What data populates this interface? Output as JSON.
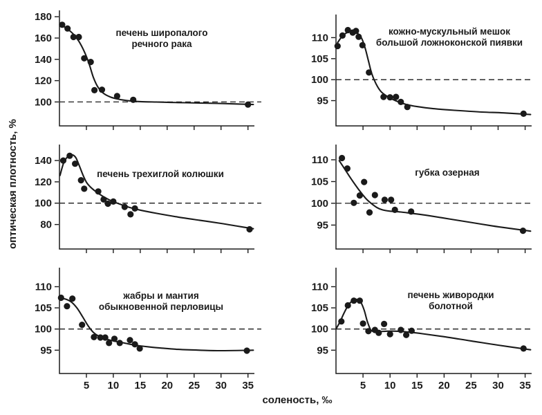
{
  "figure": {
    "ylabel": "оптическая плотность, %",
    "xlabel": "соленость, ‰",
    "ink_color": "#1a1a1a",
    "background": "#ffffff"
  },
  "chart_data": [
    {
      "type": "scatter",
      "title_lines": [
        "печень широпалого",
        "речного рака"
      ],
      "xlim": [
        0,
        36.2
      ],
      "xticks": [
        5,
        10,
        15,
        20,
        25,
        30,
        35
      ],
      "xtick_labels_visible": false,
      "ylim": [
        77.5,
        186
      ],
      "yticks": [
        100,
        120,
        140,
        160,
        180
      ],
      "ref_line_y": 100,
      "points": [
        [
          0.5,
          172.5
        ],
        [
          1.5,
          169
        ],
        [
          2.6,
          161
        ],
        [
          3.6,
          161
        ],
        [
          4.6,
          141
        ],
        [
          5.8,
          137.5
        ],
        [
          6.5,
          111
        ],
        [
          7.9,
          111.5
        ],
        [
          10.7,
          105.5
        ],
        [
          13.7,
          102
        ],
        [
          35,
          97.5
        ]
      ],
      "curve": [
        [
          0.4,
          172
        ],
        [
          1.5,
          168.5
        ],
        [
          2.6,
          163.5
        ],
        [
          3.6,
          157
        ],
        [
          4.6,
          147.5
        ],
        [
          5.5,
          136
        ],
        [
          6.3,
          123
        ],
        [
          7.2,
          113.5
        ],
        [
          8.2,
          108
        ],
        [
          9.5,
          104.5
        ],
        [
          11,
          102.5
        ],
        [
          13,
          101
        ],
        [
          15,
          100.3
        ],
        [
          18,
          99.9
        ],
        [
          22,
          99.4
        ],
        [
          26,
          99
        ],
        [
          31,
          98.4
        ],
        [
          36,
          97.6
        ]
      ]
    },
    {
      "type": "scatter",
      "title_lines": [
        "кожно-мускульный мешок",
        "большой ложноконской пиявки"
      ],
      "xlim": [
        0,
        36.2
      ],
      "xticks": [
        5,
        10,
        15,
        20,
        25,
        30,
        35
      ],
      "xtick_labels_visible": false,
      "ylim": [
        89,
        115.5
      ],
      "yticks": [
        95,
        100,
        105,
        110
      ],
      "ref_line_y": 100,
      "points": [
        [
          0.3,
          108
        ],
        [
          1.2,
          110.5
        ],
        [
          2.2,
          111.8
        ],
        [
          3.1,
          111.2
        ],
        [
          3.7,
          111.6
        ],
        [
          4.2,
          110.2
        ],
        [
          4.9,
          108.2
        ],
        [
          6.1,
          101.7
        ],
        [
          8.8,
          95.9
        ],
        [
          10,
          95.8
        ],
        [
          11.1,
          95.9
        ],
        [
          12,
          94.7
        ],
        [
          13.2,
          93.5
        ],
        [
          34.7,
          91.9
        ]
      ],
      "curve": [
        [
          0.3,
          108.8
        ],
        [
          1.2,
          110.4
        ],
        [
          2.2,
          111.3
        ],
        [
          3.1,
          111.5
        ],
        [
          4,
          111
        ],
        [
          4.8,
          109.7
        ],
        [
          5.4,
          107.5
        ],
        [
          6,
          104.5
        ],
        [
          6.6,
          101.5
        ],
        [
          7.4,
          99
        ],
        [
          8.3,
          97.2
        ],
        [
          9.5,
          96
        ],
        [
          11,
          95
        ],
        [
          13,
          94.1
        ],
        [
          15,
          93.6
        ],
        [
          18,
          93.1
        ],
        [
          22,
          92.7
        ],
        [
          27,
          92.3
        ],
        [
          31,
          92.1
        ],
        [
          36,
          91.7
        ]
      ]
    },
    {
      "type": "scatter",
      "title_lines": [
        "печень трехиглой колюшки"
      ],
      "xlim": [
        0,
        36.2
      ],
      "xticks": [
        5,
        10,
        15,
        20,
        25,
        30,
        35
      ],
      "xtick_labels_visible": false,
      "ylim": [
        57,
        155
      ],
      "yticks": [
        80,
        100,
        120,
        140
      ],
      "ref_line_y": 100,
      "points": [
        [
          0.7,
          140
        ],
        [
          1.9,
          144.5
        ],
        [
          2.9,
          137
        ],
        [
          4,
          121.5
        ],
        [
          4.6,
          113.5
        ],
        [
          7.2,
          111
        ],
        [
          8.2,
          103.5
        ],
        [
          9,
          99.5
        ],
        [
          10,
          101.5
        ],
        [
          12.1,
          96.5
        ],
        [
          13.2,
          89.5
        ],
        [
          14,
          95
        ],
        [
          35.3,
          75.5
        ]
      ],
      "curve": [
        [
          0.1,
          126
        ],
        [
          0.8,
          138
        ],
        [
          1.6,
          144
        ],
        [
          2.3,
          145.5
        ],
        [
          3,
          143
        ],
        [
          3.7,
          135
        ],
        [
          4.4,
          126
        ],
        [
          5.1,
          119
        ],
        [
          6,
          114
        ],
        [
          7,
          110
        ],
        [
          8.2,
          106
        ],
        [
          9.5,
          102.5
        ],
        [
          11,
          99.5
        ],
        [
          13,
          96
        ],
        [
          15,
          93.5
        ],
        [
          18,
          90.5
        ],
        [
          22,
          87
        ],
        [
          26,
          84
        ],
        [
          30,
          81
        ],
        [
          33,
          78.5
        ],
        [
          36,
          76
        ]
      ]
    },
    {
      "type": "scatter",
      "title_lines": [
        "губка озерная"
      ],
      "xlim": [
        0,
        36.2
      ],
      "xticks": [
        5,
        10,
        15,
        20,
        25,
        30,
        35
      ],
      "xtick_labels_visible": false,
      "ylim": [
        89.5,
        113.5
      ],
      "yticks": [
        95,
        100,
        105,
        110
      ],
      "ref_line_y": 100,
      "points": [
        [
          1.1,
          110.4
        ],
        [
          2.1,
          108
        ],
        [
          3.3,
          100.1
        ],
        [
          4.4,
          101.8
        ],
        [
          5.2,
          104.9
        ],
        [
          6.2,
          97.9
        ],
        [
          7.2,
          101.9
        ],
        [
          9,
          100.8
        ],
        [
          10.2,
          100.8
        ],
        [
          10.9,
          98.5
        ],
        [
          13.9,
          98.1
        ],
        [
          34.6,
          93.7
        ]
      ],
      "curve": [
        [
          0.6,
          109.8
        ],
        [
          1.6,
          107.9
        ],
        [
          2.6,
          106
        ],
        [
          3.6,
          104.2
        ],
        [
          4.6,
          102.5
        ],
        [
          5.6,
          101
        ],
        [
          6.6,
          99.9
        ],
        [
          7.6,
          99
        ],
        [
          8.6,
          98.5
        ],
        [
          10,
          98.2
        ],
        [
          12,
          98
        ],
        [
          14,
          97.7
        ],
        [
          17,
          97.2
        ],
        [
          21,
          96.4
        ],
        [
          25,
          95.6
        ],
        [
          29,
          94.8
        ],
        [
          33,
          94.1
        ],
        [
          36,
          93.6
        ]
      ]
    },
    {
      "type": "scatter",
      "title_lines": [
        "жабры и мантия",
        "обыкновенной перловицы"
      ],
      "xlim": [
        0,
        36.2
      ],
      "xticks": [
        5,
        10,
        15,
        20,
        25,
        30,
        35
      ],
      "xtick_labels_visible": true,
      "ylim": [
        89.5,
        114.5
      ],
      "yticks": [
        95,
        100,
        105,
        110
      ],
      "ref_line_y": 100,
      "points": [
        [
          0.3,
          107.4
        ],
        [
          1.4,
          105.4
        ],
        [
          2.4,
          107.2
        ],
        [
          4.2,
          101
        ],
        [
          6.4,
          98.1
        ],
        [
          7.6,
          98
        ],
        [
          8.5,
          98
        ],
        [
          9.2,
          96.7
        ],
        [
          10.2,
          97.7
        ],
        [
          11.2,
          96.7
        ],
        [
          13.1,
          97.4
        ],
        [
          14,
          96.4
        ],
        [
          14.9,
          95.4
        ],
        [
          34.8,
          94.9
        ]
      ],
      "curve": [
        [
          0.3,
          107.3
        ],
        [
          1.3,
          107
        ],
        [
          2.3,
          106.3
        ],
        [
          3.3,
          104.9
        ],
        [
          4.3,
          102.9
        ],
        [
          5.3,
          100.8
        ],
        [
          6.3,
          99.2
        ],
        [
          7.3,
          98.3
        ],
        [
          8.5,
          97.7
        ],
        [
          10,
          97.2
        ],
        [
          12,
          96.7
        ],
        [
          14,
          96.2
        ],
        [
          16.5,
          95.8
        ],
        [
          19,
          95.5
        ],
        [
          22,
          95.2
        ],
        [
          26,
          95
        ],
        [
          30,
          94.9
        ],
        [
          36,
          95
        ]
      ]
    },
    {
      "type": "scatter",
      "title_lines": [
        "печень живородки",
        "болотной"
      ],
      "xlim": [
        0,
        36.2
      ],
      "xticks": [
        5,
        10,
        15,
        20,
        25,
        30,
        35
      ],
      "xtick_labels_visible": true,
      "ylim": [
        89.5,
        114.5
      ],
      "yticks": [
        95,
        100,
        105,
        110
      ],
      "ref_line_y": 100,
      "points": [
        [
          1,
          101.8
        ],
        [
          2.2,
          105.6
        ],
        [
          3.3,
          106.7
        ],
        [
          4.4,
          106.7
        ],
        [
          5,
          101.3
        ],
        [
          6,
          99.5
        ],
        [
          7.2,
          99.8
        ],
        [
          7.9,
          99.1
        ],
        [
          8.9,
          101.2
        ],
        [
          10,
          98.8
        ],
        [
          12,
          99.8
        ],
        [
          13,
          98.6
        ],
        [
          14,
          99.6
        ],
        [
          34.7,
          95.4
        ]
      ],
      "curve": [
        [
          0,
          100
        ],
        [
          0.7,
          101.6
        ],
        [
          1.5,
          103.8
        ],
        [
          2.3,
          105.7
        ],
        [
          3.1,
          106.7
        ],
        [
          3.9,
          107
        ],
        [
          4.6,
          106.3
        ],
        [
          5.2,
          104.5
        ],
        [
          5.8,
          101.8
        ],
        [
          6.4,
          99.9
        ],
        [
          7,
          99.4
        ],
        [
          8,
          99.4
        ],
        [
          9.5,
          99.5
        ],
        [
          11,
          99.5
        ],
        [
          12.5,
          99.4
        ],
        [
          14,
          99.2
        ],
        [
          16,
          98.9
        ],
        [
          20,
          98.2
        ],
        [
          25,
          97.2
        ],
        [
          30,
          96.2
        ],
        [
          36,
          95.1
        ]
      ]
    }
  ]
}
